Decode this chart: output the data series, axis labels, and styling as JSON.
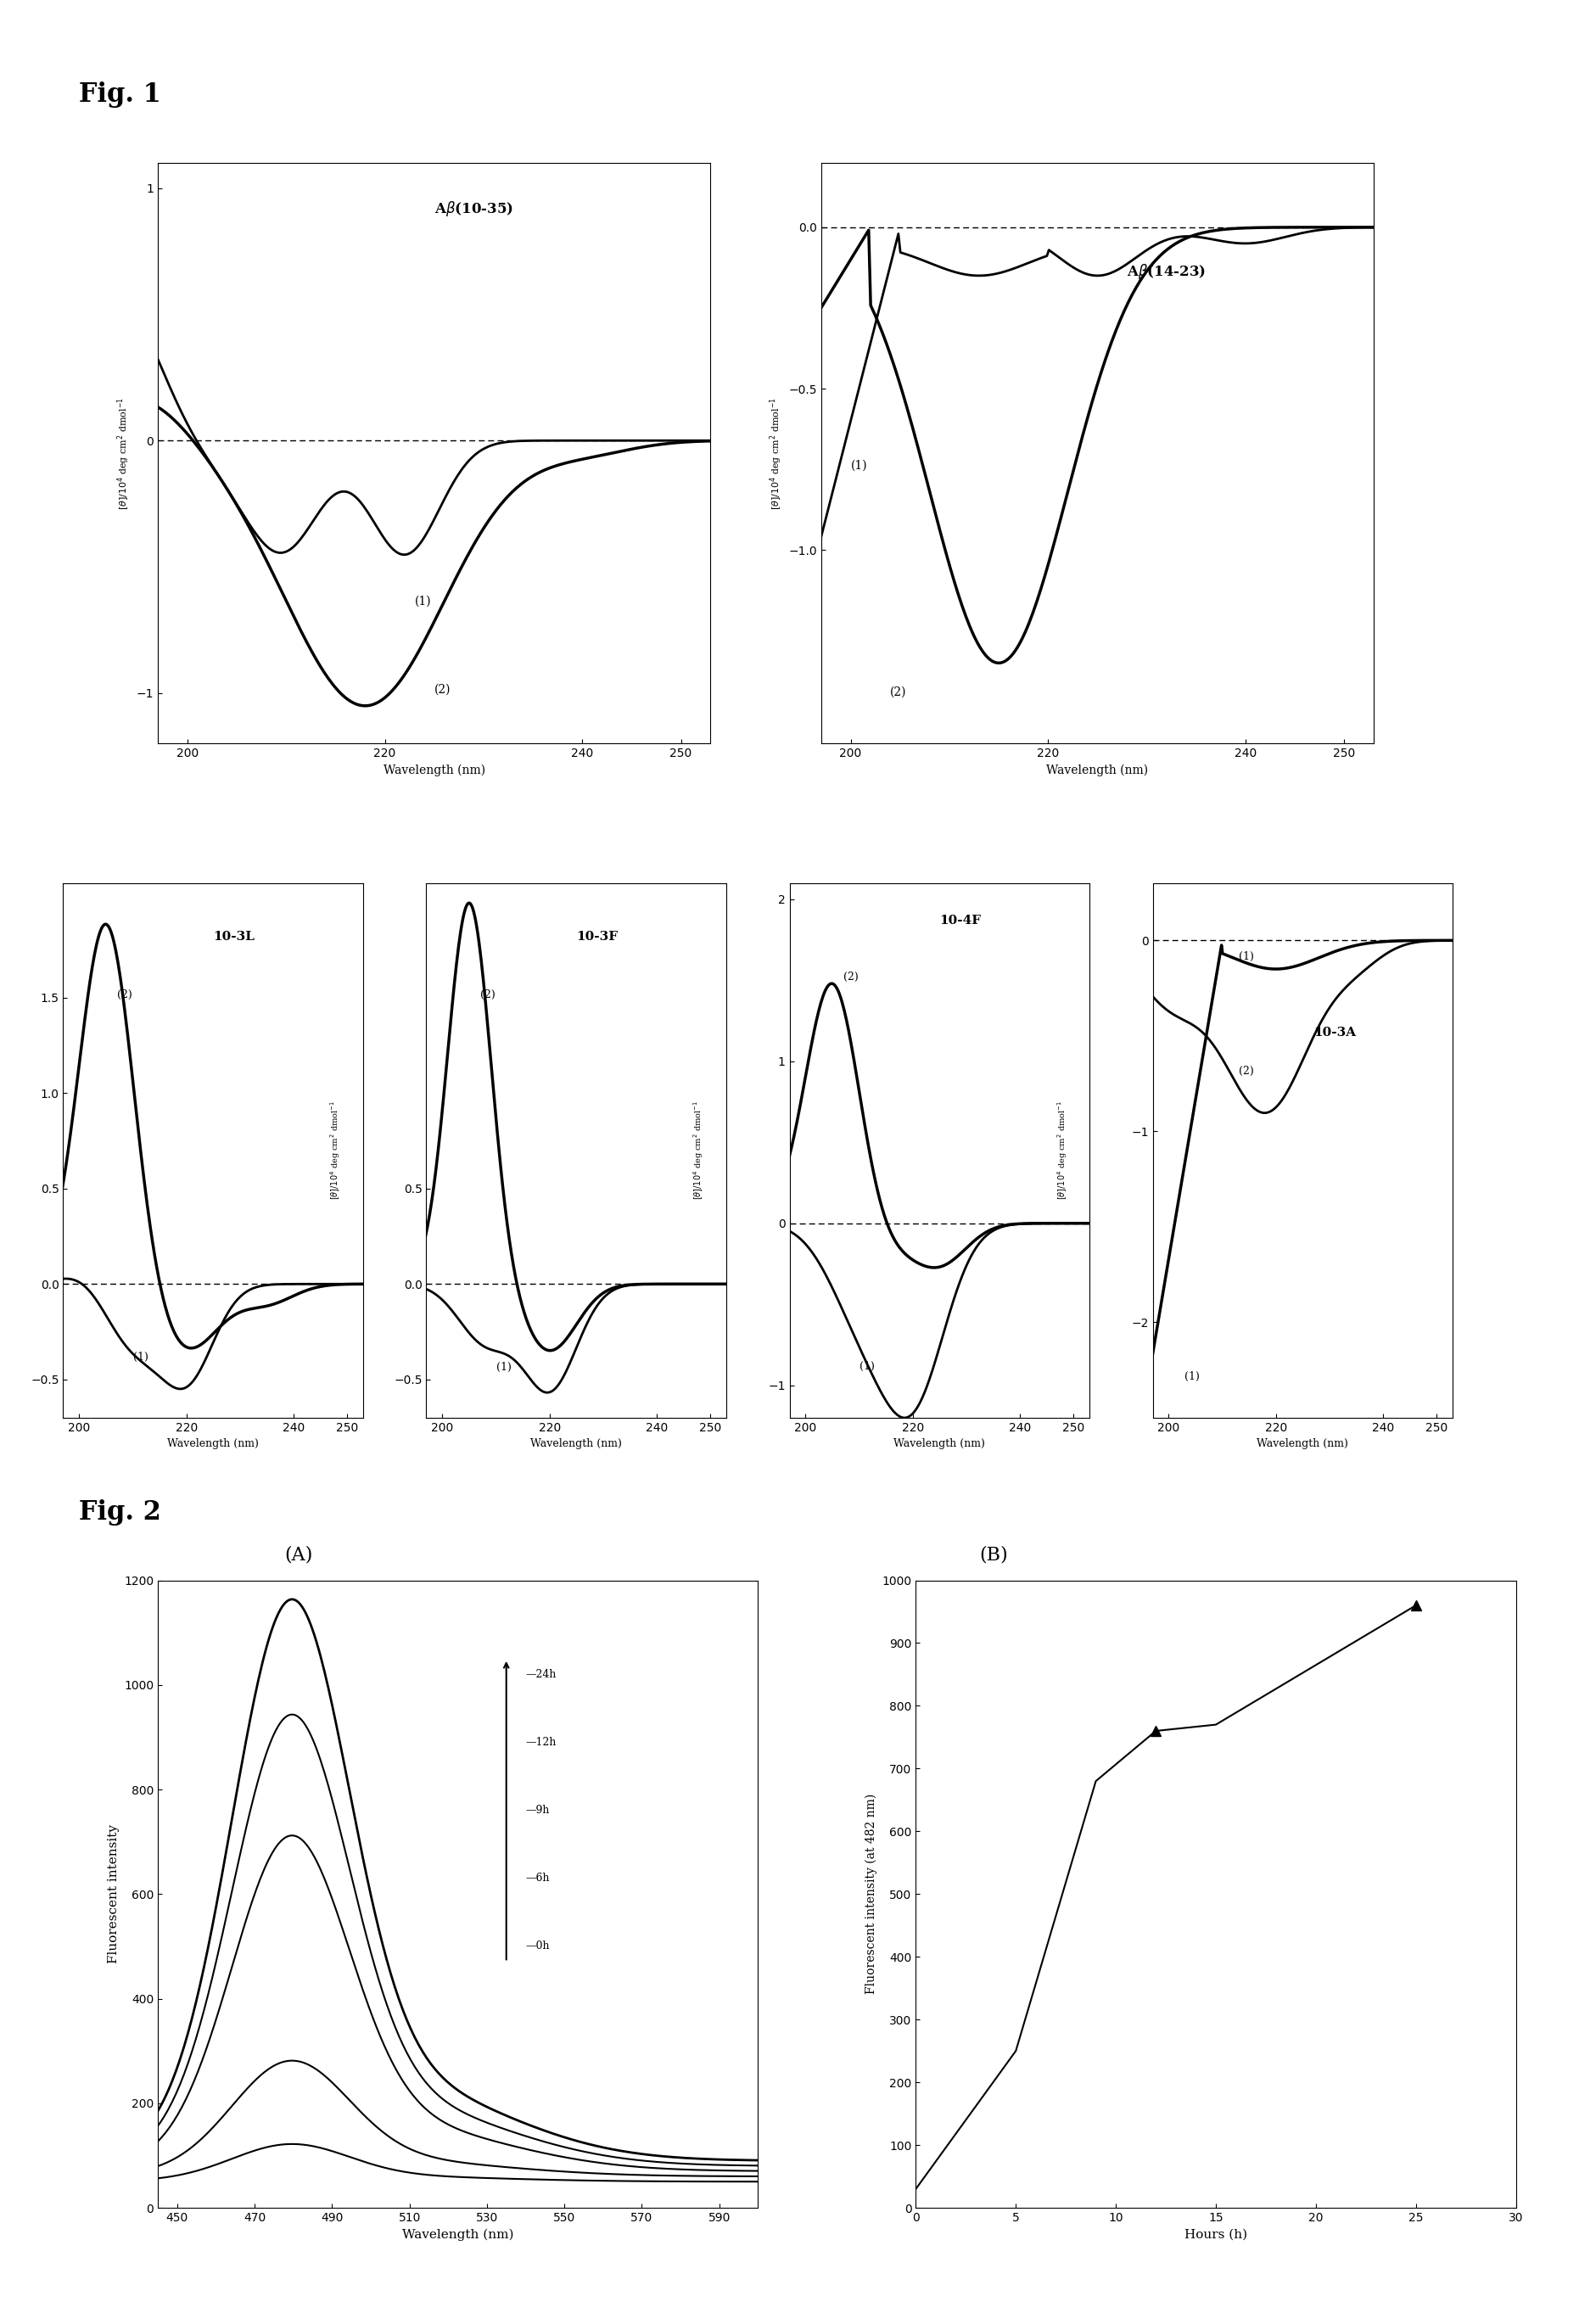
{
  "fig1_title": "Fig. 1",
  "fig2_title": "Fig. 2",
  "wavelength_range": [
    195,
    255
  ],
  "xlabel_cd": "Wavelength (nm)",
  "ylabel_cd": "[\\u03b8]/10\\u2074 deg cm\\u00b2 dmol\\u207b\\u00b9",
  "panel_ab1035_label": "A\\u03b2(10-35)",
  "panel_ab1423_label": "A\\u03b2(14-23)",
  "panel_103L_label": "10-3L",
  "panel_103F_label": "10-3F",
  "panel_104F_label": "10-4F",
  "panel_103A_label": "10-3A",
  "fig2A_title": "(A)",
  "fig2B_title": "(B)",
  "fig2A_xlabel": "Wavelength (nm)",
  "fig2A_ylabel": "Fluorescent intensity",
  "fig2B_xlabel": "Hours (h)",
  "fig2B_ylabel": "Fluorescent intensity (at 482 nm)"
}
